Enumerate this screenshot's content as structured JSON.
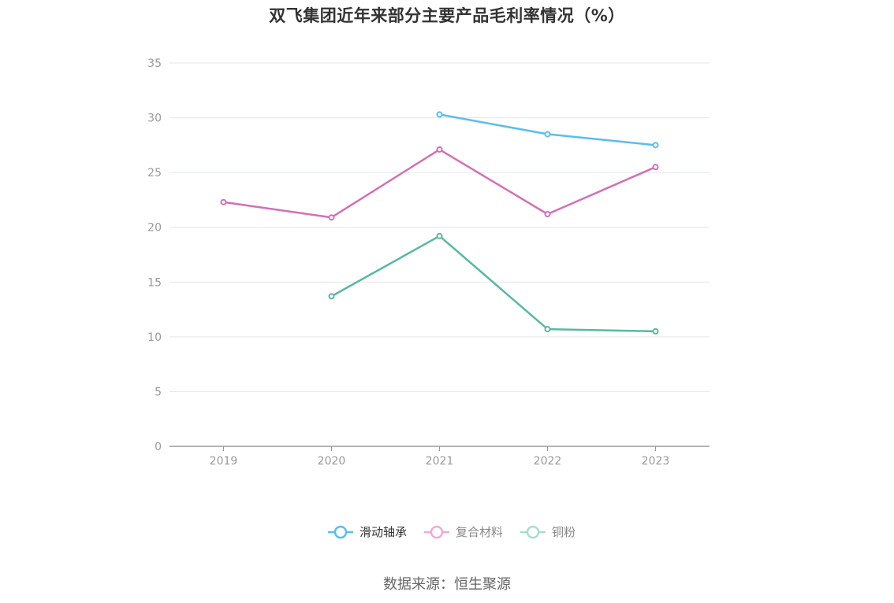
{
  "chart_data": {
    "type": "line",
    "title": "双飞集团近年来部分主要产品毛利率情况（%）",
    "categories": [
      "2019",
      "2020",
      "2021",
      "2022",
      "2023"
    ],
    "ylim": [
      0,
      35
    ],
    "yticks": [
      "0",
      "5",
      "10",
      "15",
      "20",
      "25",
      "30",
      "35"
    ],
    "grid": true,
    "legend_position": "bottom",
    "series": [
      {
        "name": "滑动轴承",
        "color": "#5bbcf0",
        "values": [
          null,
          null,
          30.3,
          28.5,
          27.5
        ]
      },
      {
        "name": "复合材料",
        "color": "#d46fb5",
        "values": [
          22.3,
          20.9,
          27.1,
          21.2,
          25.5
        ]
      },
      {
        "name": "铜粉",
        "color": "#57b9a0",
        "values": [
          null,
          13.7,
          19.2,
          10.7,
          10.5
        ]
      }
    ],
    "legend_marker_colors": [
      "#5bbcf0",
      "#eeaad6",
      "#a7dccd"
    ],
    "legend_text_colors": [
      "#333333",
      "#888888",
      "#888888"
    ],
    "source": "数据来源：恒生聚源"
  }
}
